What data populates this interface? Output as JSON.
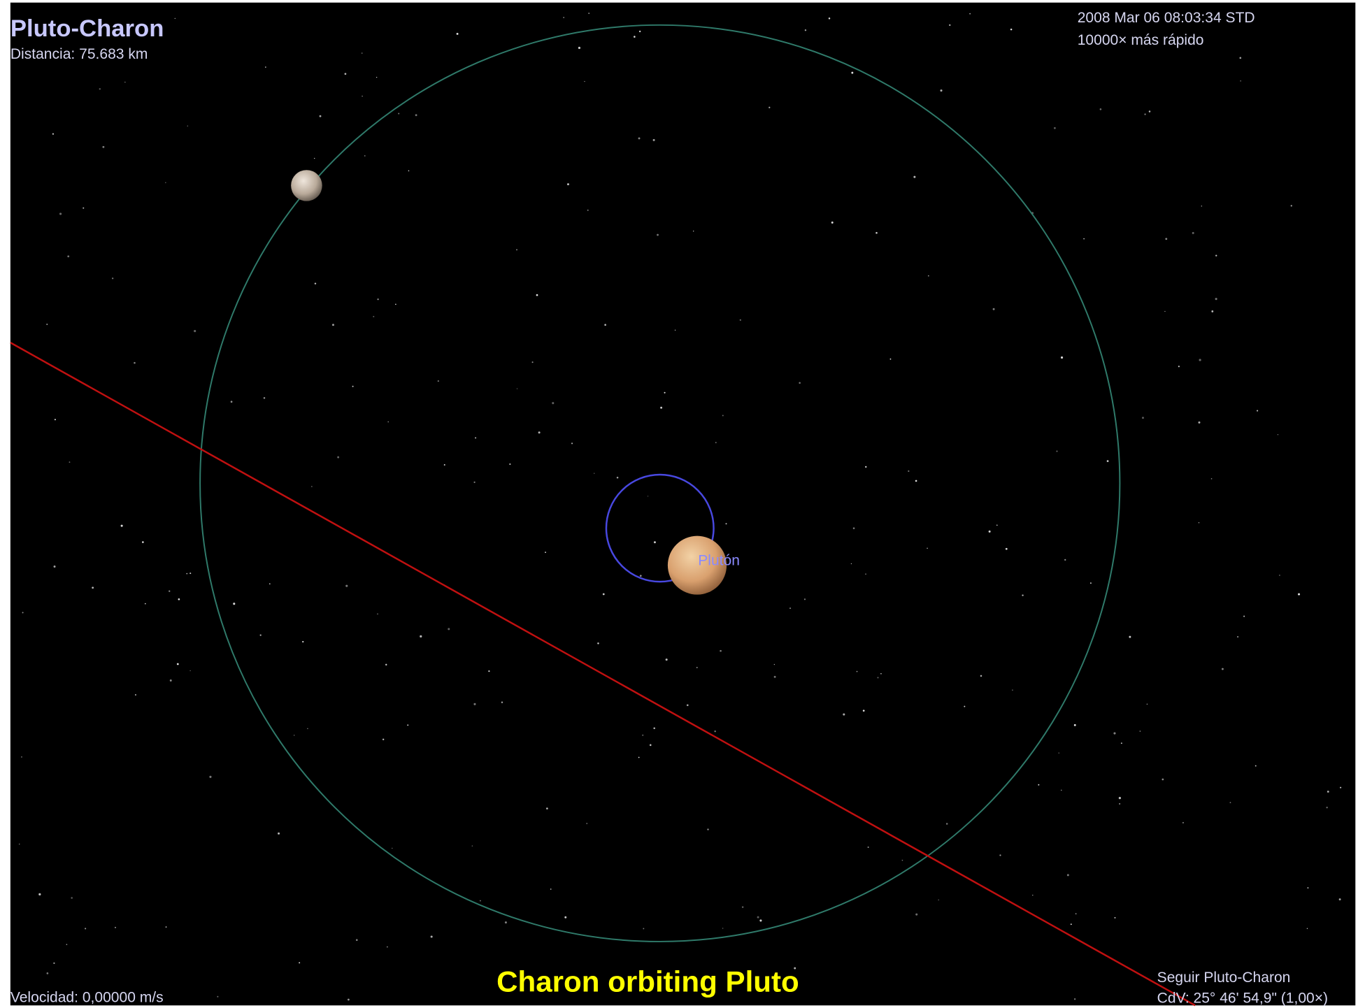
{
  "header": {
    "title": "Pluto-Charon",
    "distance": "Distancia: 75.683 km",
    "datetime": "2008 Mar 06 08:03:34 STD",
    "time_rate": "10000× más rápido"
  },
  "labels": {
    "pluto": "Plutón"
  },
  "caption": "Charon orbiting Pluto",
  "footer": {
    "velocity": "Velocidad: 0,00000 m/s",
    "follow": "Seguir Pluto-Charon",
    "fov": "CdV: 25° 46' 54,9\" (1,00×)"
  }
}
